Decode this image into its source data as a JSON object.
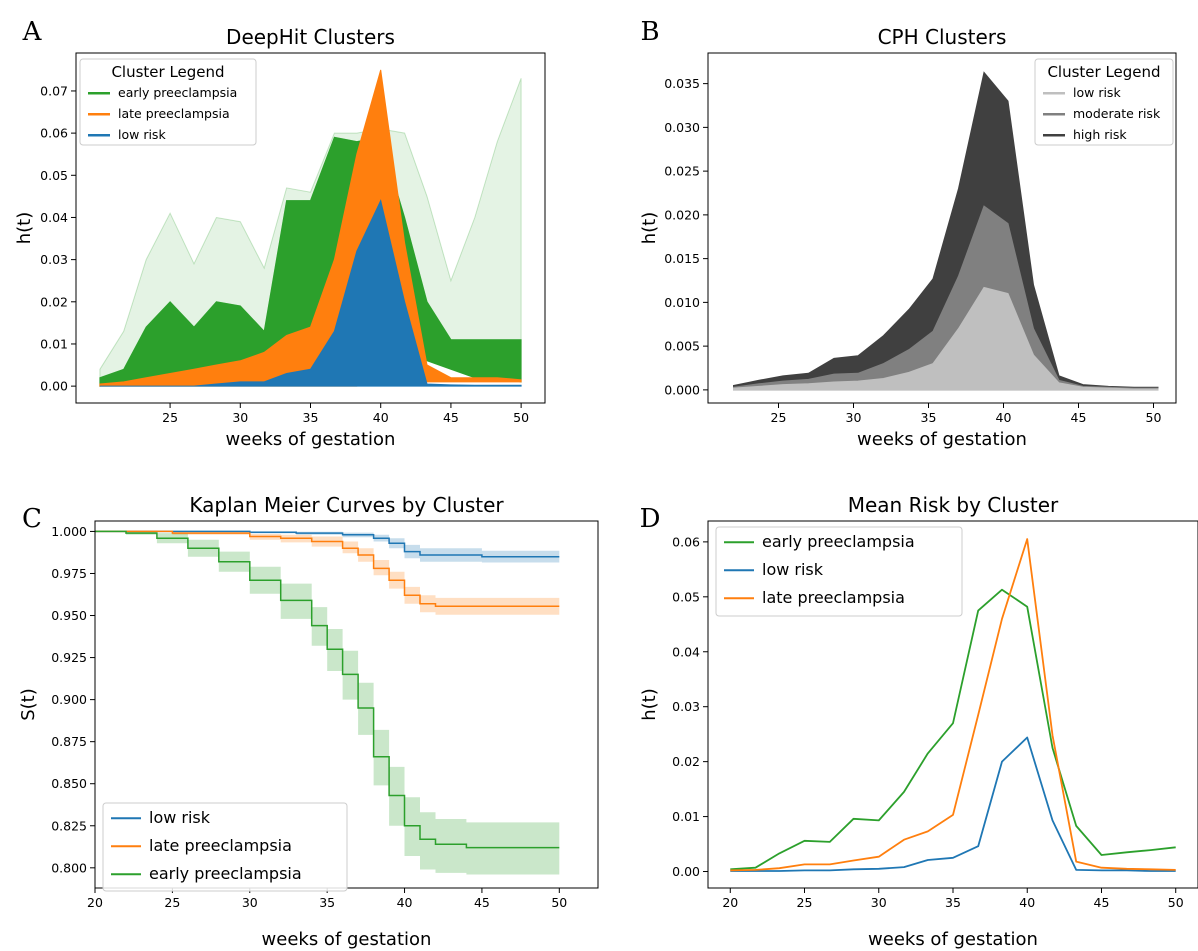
{
  "chart_data": [
    {
      "panel": "A",
      "type": "area",
      "title": "DeepHit Clusters",
      "xlabel": "weeks of gestation",
      "ylabel": "h(t)",
      "xlim": [
        18.3,
        51.7
      ],
      "ylim": [
        -0.004,
        0.079
      ],
      "xticks": [
        25,
        30,
        35,
        40,
        45,
        50
      ],
      "yticks": [
        0.0,
        0.01,
        0.02,
        0.03,
        0.04,
        0.05,
        0.06,
        0.07
      ],
      "ytick_labels": [
        "0.00",
        "0.01",
        "0.02",
        "0.03",
        "0.04",
        "0.05",
        "0.06",
        "0.07"
      ],
      "legend": {
        "title": "Cluster Legend",
        "placement": "top-left"
      },
      "series": [
        {
          "name": "early preeclampsia",
          "color": "#2ca02c",
          "x": [
            20,
            21.7,
            23.3,
            25,
            26.7,
            28.3,
            30,
            31.7,
            33.3,
            35,
            36.7,
            38.3,
            40,
            41.7,
            43.3,
            45,
            46.7,
            48.3,
            50
          ],
          "lower": [
            0,
            0.001,
            0.002,
            0.003,
            0.003,
            0.004,
            0.005,
            0.006,
            0.008,
            0.011,
            0.013,
            0.018,
            0.028,
            0.03,
            0.006,
            0.004,
            0.002,
            0.002,
            0.001
          ],
          "upper": [
            0.002,
            0.004,
            0.014,
            0.02,
            0.014,
            0.02,
            0.019,
            0.013,
            0.044,
            0.044,
            0.059,
            0.058,
            0.059,
            0.04,
            0.02,
            0.011,
            0.011,
            0.011,
            0.011
          ],
          "faint_upper": [
            0.004,
            0.013,
            0.03,
            0.041,
            0.029,
            0.04,
            0.039,
            0.028,
            0.047,
            0.046,
            0.06,
            0.06,
            0.061,
            0.06,
            0.045,
            0.025,
            0.04,
            0.058,
            0.073
          ]
        },
        {
          "name": "late preeclampsia",
          "color": "#ff7f0e",
          "x": [
            20,
            21.7,
            23.3,
            25,
            26.7,
            28.3,
            30,
            31.7,
            33.3,
            35,
            36.7,
            38.3,
            40,
            41.7,
            43.3,
            45,
            46.7,
            48.3,
            50
          ],
          "lower": [
            0,
            0,
            0,
            0,
            0,
            0,
            0,
            0,
            0,
            0,
            0,
            0,
            0.001,
            0.002,
            0.001,
            0.001,
            0.001,
            0.001,
            0.001
          ],
          "upper": [
            0.0005,
            0.001,
            0.002,
            0.003,
            0.004,
            0.005,
            0.006,
            0.008,
            0.012,
            0.014,
            0.03,
            0.055,
            0.075,
            0.034,
            0.005,
            0.002,
            0.002,
            0.002,
            0.0015
          ]
        },
        {
          "name": "low risk",
          "color": "#1f77b4",
          "x": [
            20,
            21.7,
            23.3,
            25,
            26.7,
            28.3,
            30,
            31.7,
            33.3,
            35,
            36.7,
            38.3,
            40,
            41.7,
            43.3,
            45,
            46.7,
            48.3,
            50
          ],
          "lower": [
            0,
            0,
            0,
            0,
            0,
            0,
            0,
            0,
            0,
            0,
            0,
            0,
            0,
            0,
            0,
            0,
            0,
            0,
            0
          ],
          "upper": [
            0,
            0,
            0,
            0,
            0,
            0.0005,
            0.001,
            0.001,
            0.003,
            0.004,
            0.013,
            0.032,
            0.044,
            0.02,
            0.0005,
            0.0003,
            0.0002,
            0.0002,
            0.0002
          ]
        }
      ]
    },
    {
      "panel": "B",
      "type": "area",
      "title": "CPH Clusters",
      "xlabel": "weeks of gestation",
      "ylabel": "h(t)",
      "xlim": [
        20.3,
        51.5
      ],
      "ylim": [
        -0.0015,
        0.0385
      ],
      "xticks": [
        25,
        30,
        35,
        40,
        45,
        50
      ],
      "yticks": [
        0.0,
        0.005,
        0.01,
        0.015,
        0.02,
        0.025,
        0.03,
        0.035
      ],
      "ytick_labels": [
        "0.000",
        "0.005",
        "0.010",
        "0.015",
        "0.020",
        "0.025",
        "0.030",
        "0.035"
      ],
      "legend": {
        "title": "Cluster Legend",
        "placement": "top-right"
      },
      "series": [
        {
          "name": "low risk",
          "color": "#bfbfbf",
          "x": [
            22,
            23.7,
            25.3,
            27,
            28.7,
            30.3,
            32,
            33.7,
            35.3,
            37,
            38.7,
            40.3,
            42,
            43.7,
            45.3,
            47,
            48.7,
            50.3
          ],
          "lower": [
            0,
            0,
            0,
            0,
            0,
            0,
            0,
            0,
            0,
            0,
            0,
            0,
            0,
            0,
            0,
            0,
            0,
            0
          ],
          "upper": [
            0.0002,
            0.0004,
            0.0006,
            0.0007,
            0.0009,
            0.001,
            0.0013,
            0.002,
            0.003,
            0.007,
            0.0117,
            0.011,
            0.004,
            0.0008,
            0.0003,
            0.0002,
            0.0001,
            0.0001
          ]
        },
        {
          "name": "moderate risk",
          "color": "#808080",
          "x": [
            22,
            23.7,
            25.3,
            27,
            28.7,
            30.3,
            32,
            33.7,
            35.3,
            37,
            38.7,
            40.3,
            42,
            43.7,
            45.3,
            47,
            48.7,
            50.3
          ],
          "upper": [
            0.0003,
            0.0007,
            0.001,
            0.0012,
            0.0018,
            0.0019,
            0.003,
            0.0046,
            0.0067,
            0.013,
            0.021,
            0.019,
            0.007,
            0.0011,
            0.0004,
            0.0003,
            0.0002,
            0.0002
          ]
        },
        {
          "name": "high risk",
          "color": "#404040",
          "x": [
            22,
            23.7,
            25.3,
            27,
            28.7,
            30.3,
            32,
            33.7,
            35.3,
            37,
            38.7,
            40.3,
            42,
            43.7,
            45.3,
            47,
            48.7,
            50.3
          ],
          "upper": [
            0.0005,
            0.0011,
            0.0016,
            0.0019,
            0.0036,
            0.0039,
            0.0062,
            0.0092,
            0.0127,
            0.023,
            0.0363,
            0.033,
            0.012,
            0.0016,
            0.0006,
            0.0004,
            0.0003,
            0.0003
          ]
        }
      ]
    },
    {
      "panel": "C",
      "type": "line",
      "title": "Kaplan Meier Curves by Cluster",
      "xlabel": "weeks of gestation",
      "ylabel": "S(t)",
      "xlim": [
        20,
        52.5
      ],
      "ylim": [
        0.788,
        1.0062
      ],
      "xticks": [
        20,
        25,
        30,
        35,
        40,
        45,
        50
      ],
      "yticks": [
        0.8,
        0.825,
        0.85,
        0.875,
        0.9,
        0.925,
        0.95,
        0.975,
        1.0
      ],
      "ytick_labels": [
        "0.800",
        "0.825",
        "0.850",
        "0.875",
        "0.900",
        "0.925",
        "0.950",
        "0.975",
        "1.000"
      ],
      "legend": {
        "placement": "lower-left"
      },
      "series": [
        {
          "name": "low risk",
          "color": "#1f77b4",
          "x": [
            20,
            30,
            33,
            36,
            38,
            39,
            40,
            41,
            45,
            50
          ],
          "y": [
            1.0,
            0.9995,
            0.999,
            0.998,
            0.996,
            0.993,
            0.988,
            0.986,
            0.985,
            0.985
          ],
          "ci_lower": [
            1.0,
            0.9988,
            0.998,
            0.9965,
            0.994,
            0.99,
            0.984,
            0.982,
            0.9815,
            0.9815
          ],
          "ci_upper": [
            1.0,
            1.0,
            0.9998,
            0.9993,
            0.998,
            0.996,
            0.992,
            0.99,
            0.9885,
            0.9885
          ]
        },
        {
          "name": "late preeclampsia",
          "color": "#ff7f0e",
          "x": [
            20,
            25,
            30,
            32,
            34,
            36,
            37,
            38,
            39,
            40,
            41,
            42,
            45,
            50
          ],
          "y": [
            1.0,
            0.999,
            0.997,
            0.996,
            0.994,
            0.99,
            0.986,
            0.978,
            0.971,
            0.962,
            0.957,
            0.9555,
            0.9555,
            0.9555
          ],
          "ci_lower": [
            1.0,
            0.998,
            0.995,
            0.9935,
            0.991,
            0.987,
            0.982,
            0.974,
            0.966,
            0.957,
            0.952,
            0.9505,
            0.9505,
            0.9505
          ],
          "ci_upper": [
            1.0,
            1.0,
            0.9985,
            0.998,
            0.997,
            0.994,
            0.99,
            0.983,
            0.976,
            0.967,
            0.962,
            0.9605,
            0.9605,
            0.9605
          ]
        },
        {
          "name": "early preeclampsia",
          "color": "#2ca02c",
          "x": [
            20,
            22,
            24,
            26,
            28,
            30,
            32,
            34,
            35,
            36,
            37,
            38,
            39,
            40,
            41,
            42,
            44,
            45,
            50
          ],
          "y": [
            1.0,
            0.999,
            0.996,
            0.99,
            0.982,
            0.971,
            0.959,
            0.944,
            0.93,
            0.915,
            0.895,
            0.866,
            0.843,
            0.825,
            0.817,
            0.814,
            0.812,
            0.812,
            0.812
          ],
          "ci_lower": [
            1.0,
            0.998,
            0.993,
            0.985,
            0.976,
            0.963,
            0.948,
            0.932,
            0.917,
            0.9,
            0.879,
            0.849,
            0.825,
            0.807,
            0.799,
            0.797,
            0.796,
            0.796,
            0.796
          ],
          "ci_upper": [
            1.0,
            1.0,
            0.999,
            0.995,
            0.988,
            0.979,
            0.969,
            0.955,
            0.942,
            0.929,
            0.91,
            0.882,
            0.86,
            0.842,
            0.833,
            0.829,
            0.827,
            0.827,
            0.827
          ]
        }
      ]
    },
    {
      "panel": "D",
      "type": "line",
      "title": "Mean Risk by Cluster",
      "xlabel": "weeks of gestation",
      "ylabel": "h(t)",
      "xlim": [
        18.5,
        51.5
      ],
      "ylim": [
        -0.003,
        0.0638
      ],
      "xticks": [
        20,
        25,
        30,
        35,
        40,
        45,
        50
      ],
      "yticks": [
        0.0,
        0.01,
        0.02,
        0.03,
        0.04,
        0.05,
        0.06
      ],
      "ytick_labels": [
        "0.00",
        "0.01",
        "0.02",
        "0.03",
        "0.04",
        "0.05",
        "0.06"
      ],
      "legend": {
        "placement": "top-left"
      },
      "series": [
        {
          "name": "early preeclampsia",
          "color": "#2ca02c",
          "x": [
            20,
            21.7,
            23.3,
            25,
            26.7,
            28.3,
            30,
            31.7,
            33.3,
            35,
            36.7,
            38.3,
            40,
            41.7,
            43.3,
            45,
            46.7,
            48.3,
            50
          ],
          "y": [
            0.0004,
            0.0007,
            0.0033,
            0.0056,
            0.0054,
            0.0096,
            0.0093,
            0.0145,
            0.0215,
            0.027,
            0.0475,
            0.0513,
            0.0482,
            0.0225,
            0.0083,
            0.003,
            0.0035,
            0.0039,
            0.0044
          ]
        },
        {
          "name": "low risk",
          "color": "#1f77b4",
          "x": [
            20,
            21.7,
            23.3,
            25,
            26.7,
            28.3,
            30,
            31.7,
            33.3,
            35,
            36.7,
            38.3,
            40,
            41.7,
            43.3,
            45,
            46.7,
            48.3,
            50
          ],
          "y": [
            0.0001,
            0.0001,
            0.0001,
            0.0002,
            0.0002,
            0.0004,
            0.0005,
            0.0008,
            0.0021,
            0.0025,
            0.0046,
            0.02,
            0.0244,
            0.0093,
            0.0003,
            0.0002,
            0.0002,
            0.0001,
            0.0001
          ]
        },
        {
          "name": "late preeclampsia",
          "color": "#ff7f0e",
          "x": [
            20,
            21.7,
            23.3,
            25,
            26.7,
            28.3,
            30,
            31.7,
            33.3,
            35,
            36.7,
            38.3,
            40,
            41.7,
            43.3,
            45,
            46.7,
            48.3,
            50
          ],
          "y": [
            0.0002,
            0.0003,
            0.0006,
            0.0013,
            0.0013,
            0.002,
            0.0027,
            0.0058,
            0.0073,
            0.0103,
            0.0285,
            0.046,
            0.0605,
            0.0248,
            0.0018,
            0.0007,
            0.0005,
            0.0004,
            0.0003
          ]
        }
      ]
    }
  ]
}
